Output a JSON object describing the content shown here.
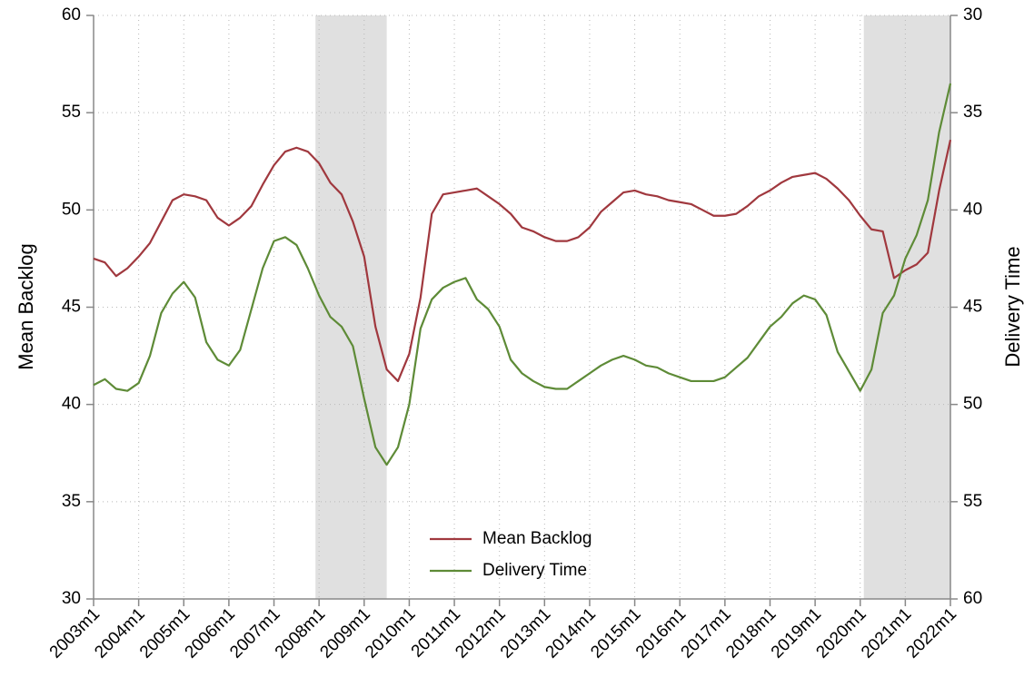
{
  "chart_data": {
    "type": "line",
    "x": [
      2003,
      2003.25,
      2003.5,
      2003.75,
      2004,
      2004.25,
      2004.5,
      2004.75,
      2005,
      2005.25,
      2005.5,
      2005.75,
      2006,
      2006.25,
      2006.5,
      2006.75,
      2007,
      2007.25,
      2007.5,
      2007.75,
      2008,
      2008.25,
      2008.5,
      2008.75,
      2009,
      2009.25,
      2009.5,
      2009.75,
      2010,
      2010.25,
      2010.5,
      2010.75,
      2011,
      2011.25,
      2011.5,
      2011.75,
      2012,
      2012.25,
      2012.5,
      2012.75,
      2013,
      2013.25,
      2013.5,
      2013.75,
      2014,
      2014.25,
      2014.5,
      2014.75,
      2015,
      2015.25,
      2015.5,
      2015.75,
      2016,
      2016.25,
      2016.5,
      2016.75,
      2017,
      2017.25,
      2017.5,
      2017.75,
      2018,
      2018.25,
      2018.5,
      2018.75,
      2019,
      2019.25,
      2019.5,
      2019.75,
      2020,
      2020.25,
      2020.5,
      2020.75,
      2021,
      2021.25,
      2021.5,
      2021.75,
      2022
    ],
    "series": [
      {
        "name": "Mean Backlog",
        "color": "#a0383e",
        "axis": "y",
        "values": [
          47.5,
          47.3,
          46.6,
          47.0,
          47.6,
          48.3,
          49.4,
          50.5,
          50.8,
          50.7,
          50.5,
          49.6,
          49.2,
          49.6,
          50.2,
          51.3,
          52.3,
          53.0,
          53.2,
          53.0,
          52.4,
          51.4,
          50.8,
          49.4,
          47.6,
          44.0,
          41.8,
          41.2,
          42.6,
          45.5,
          49.8,
          50.8,
          50.9,
          51.0,
          51.1,
          50.7,
          50.3,
          49.8,
          49.1,
          48.9,
          48.6,
          48.4,
          48.4,
          48.6,
          49.1,
          49.9,
          50.4,
          50.9,
          51.0,
          50.8,
          50.7,
          50.5,
          50.4,
          50.3,
          50.0,
          49.7,
          49.7,
          49.8,
          50.2,
          50.7,
          51.0,
          51.4,
          51.7,
          51.8,
          51.9,
          51.6,
          51.1,
          50.5,
          49.7,
          49.0,
          48.9,
          46.5,
          46.9,
          47.2,
          47.8,
          51.0,
          53.6
        ]
      },
      {
        "name": "Delivery Time",
        "color": "#5e8b37",
        "axis": "y2",
        "values": [
          49.0,
          48.7,
          49.2,
          49.3,
          48.9,
          47.5,
          45.3,
          44.3,
          43.7,
          44.5,
          46.8,
          47.7,
          48.0,
          47.2,
          45.1,
          43.0,
          41.6,
          41.4,
          41.8,
          43.0,
          44.4,
          45.5,
          46.0,
          47.0,
          49.7,
          52.2,
          53.1,
          52.2,
          50.0,
          46.1,
          44.6,
          44.0,
          43.7,
          43.5,
          44.6,
          45.1,
          46.0,
          47.7,
          48.4,
          48.8,
          49.1,
          49.2,
          49.2,
          48.8,
          48.4,
          48.0,
          47.7,
          47.5,
          47.7,
          48.0,
          48.1,
          48.4,
          48.6,
          48.8,
          48.8,
          48.8,
          48.6,
          48.1,
          47.6,
          46.8,
          46.0,
          45.5,
          44.8,
          44.4,
          44.6,
          45.4,
          47.3,
          48.3,
          49.3,
          48.2,
          45.3,
          44.4,
          42.5,
          41.3,
          39.5,
          36.0,
          33.5
        ]
      }
    ],
    "shaded_periods": [
      {
        "start": 2007.92,
        "end": 2009.5
      },
      {
        "start": 2020.08,
        "end": 2022
      }
    ],
    "xlim": [
      2003,
      2022
    ],
    "xticks": [
      {
        "value": 2003,
        "label": "2003m1"
      },
      {
        "value": 2004,
        "label": "2004m1"
      },
      {
        "value": 2005,
        "label": "2005m1"
      },
      {
        "value": 2006,
        "label": "2006m1"
      },
      {
        "value": 2007,
        "label": "2007m1"
      },
      {
        "value": 2008,
        "label": "2008m1"
      },
      {
        "value": 2009,
        "label": "2009m1"
      },
      {
        "value": 2010,
        "label": "2010m1"
      },
      {
        "value": 2011,
        "label": "2011m1"
      },
      {
        "value": 2012,
        "label": "2012m1"
      },
      {
        "value": 2013,
        "label": "2013m1"
      },
      {
        "value": 2014,
        "label": "2014m1"
      },
      {
        "value": 2015,
        "label": "2015m1"
      },
      {
        "value": 2016,
        "label": "2016m1"
      },
      {
        "value": 2017,
        "label": "2017m1"
      },
      {
        "value": 2018,
        "label": "2018m1"
      },
      {
        "value": 2019,
        "label": "2019m1"
      },
      {
        "value": 2020,
        "label": "2020m1"
      },
      {
        "value": 2021,
        "label": "2021m1"
      },
      {
        "value": 2022,
        "label": "2022m1"
      }
    ],
    "ylim": [
      30,
      60
    ],
    "yticks": [
      30,
      35,
      40,
      45,
      50,
      55,
      60
    ],
    "y2lim": [
      60,
      30
    ],
    "y2ticks": [
      30,
      35,
      40,
      45,
      50,
      55,
      60
    ],
    "ylabel": "Mean Backlog",
    "y2label": "Delivery Time",
    "grid": true,
    "legend_position": "lower center"
  }
}
